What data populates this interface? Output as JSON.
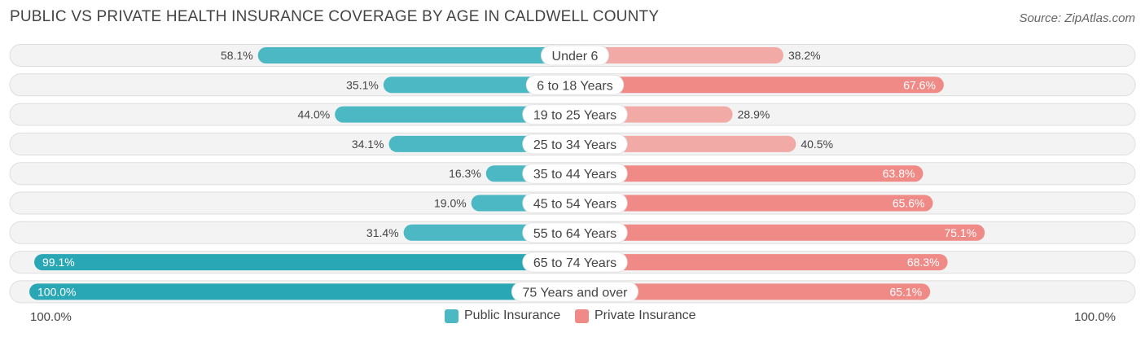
{
  "title": "PUBLIC VS PRIVATE HEALTH INSURANCE COVERAGE BY AGE IN CALDWELL COUNTY",
  "source": "Source: ZipAtlas.com",
  "axis": {
    "left_label": "100.0%",
    "right_label": "100.0%"
  },
  "colors": {
    "public": "#4bb8c4",
    "public_dark": "#2aa7b5",
    "private": "#f08a86",
    "private_light": "#f2aaa6"
  },
  "chart_data": {
    "type": "bar",
    "orientation": "horizontal-diverging",
    "title": "PUBLIC VS PRIVATE HEALTH INSURANCE COVERAGE BY AGE IN CALDWELL COUNTY",
    "categories": [
      "Under 6",
      "6 to 18 Years",
      "19 to 25 Years",
      "25 to 34 Years",
      "35 to 44 Years",
      "45 to 54 Years",
      "55 to 64 Years",
      "65 to 74 Years",
      "75 Years and over"
    ],
    "series": [
      {
        "name": "Public Insurance",
        "values": [
          58.1,
          35.1,
          44.0,
          34.1,
          16.3,
          19.0,
          31.4,
          99.1,
          100.0
        ],
        "labels": [
          "58.1%",
          "35.1%",
          "44.0%",
          "34.1%",
          "16.3%",
          "19.0%",
          "31.4%",
          "99.1%",
          "100.0%"
        ]
      },
      {
        "name": "Private Insurance",
        "values": [
          38.2,
          67.6,
          28.9,
          40.5,
          63.8,
          65.6,
          75.1,
          68.3,
          65.1
        ],
        "labels": [
          "38.2%",
          "67.6%",
          "28.9%",
          "40.5%",
          "63.8%",
          "65.6%",
          "75.1%",
          "68.3%",
          "65.1%"
        ]
      }
    ],
    "xlim": [
      0,
      100
    ],
    "legend": "bottom-center"
  }
}
